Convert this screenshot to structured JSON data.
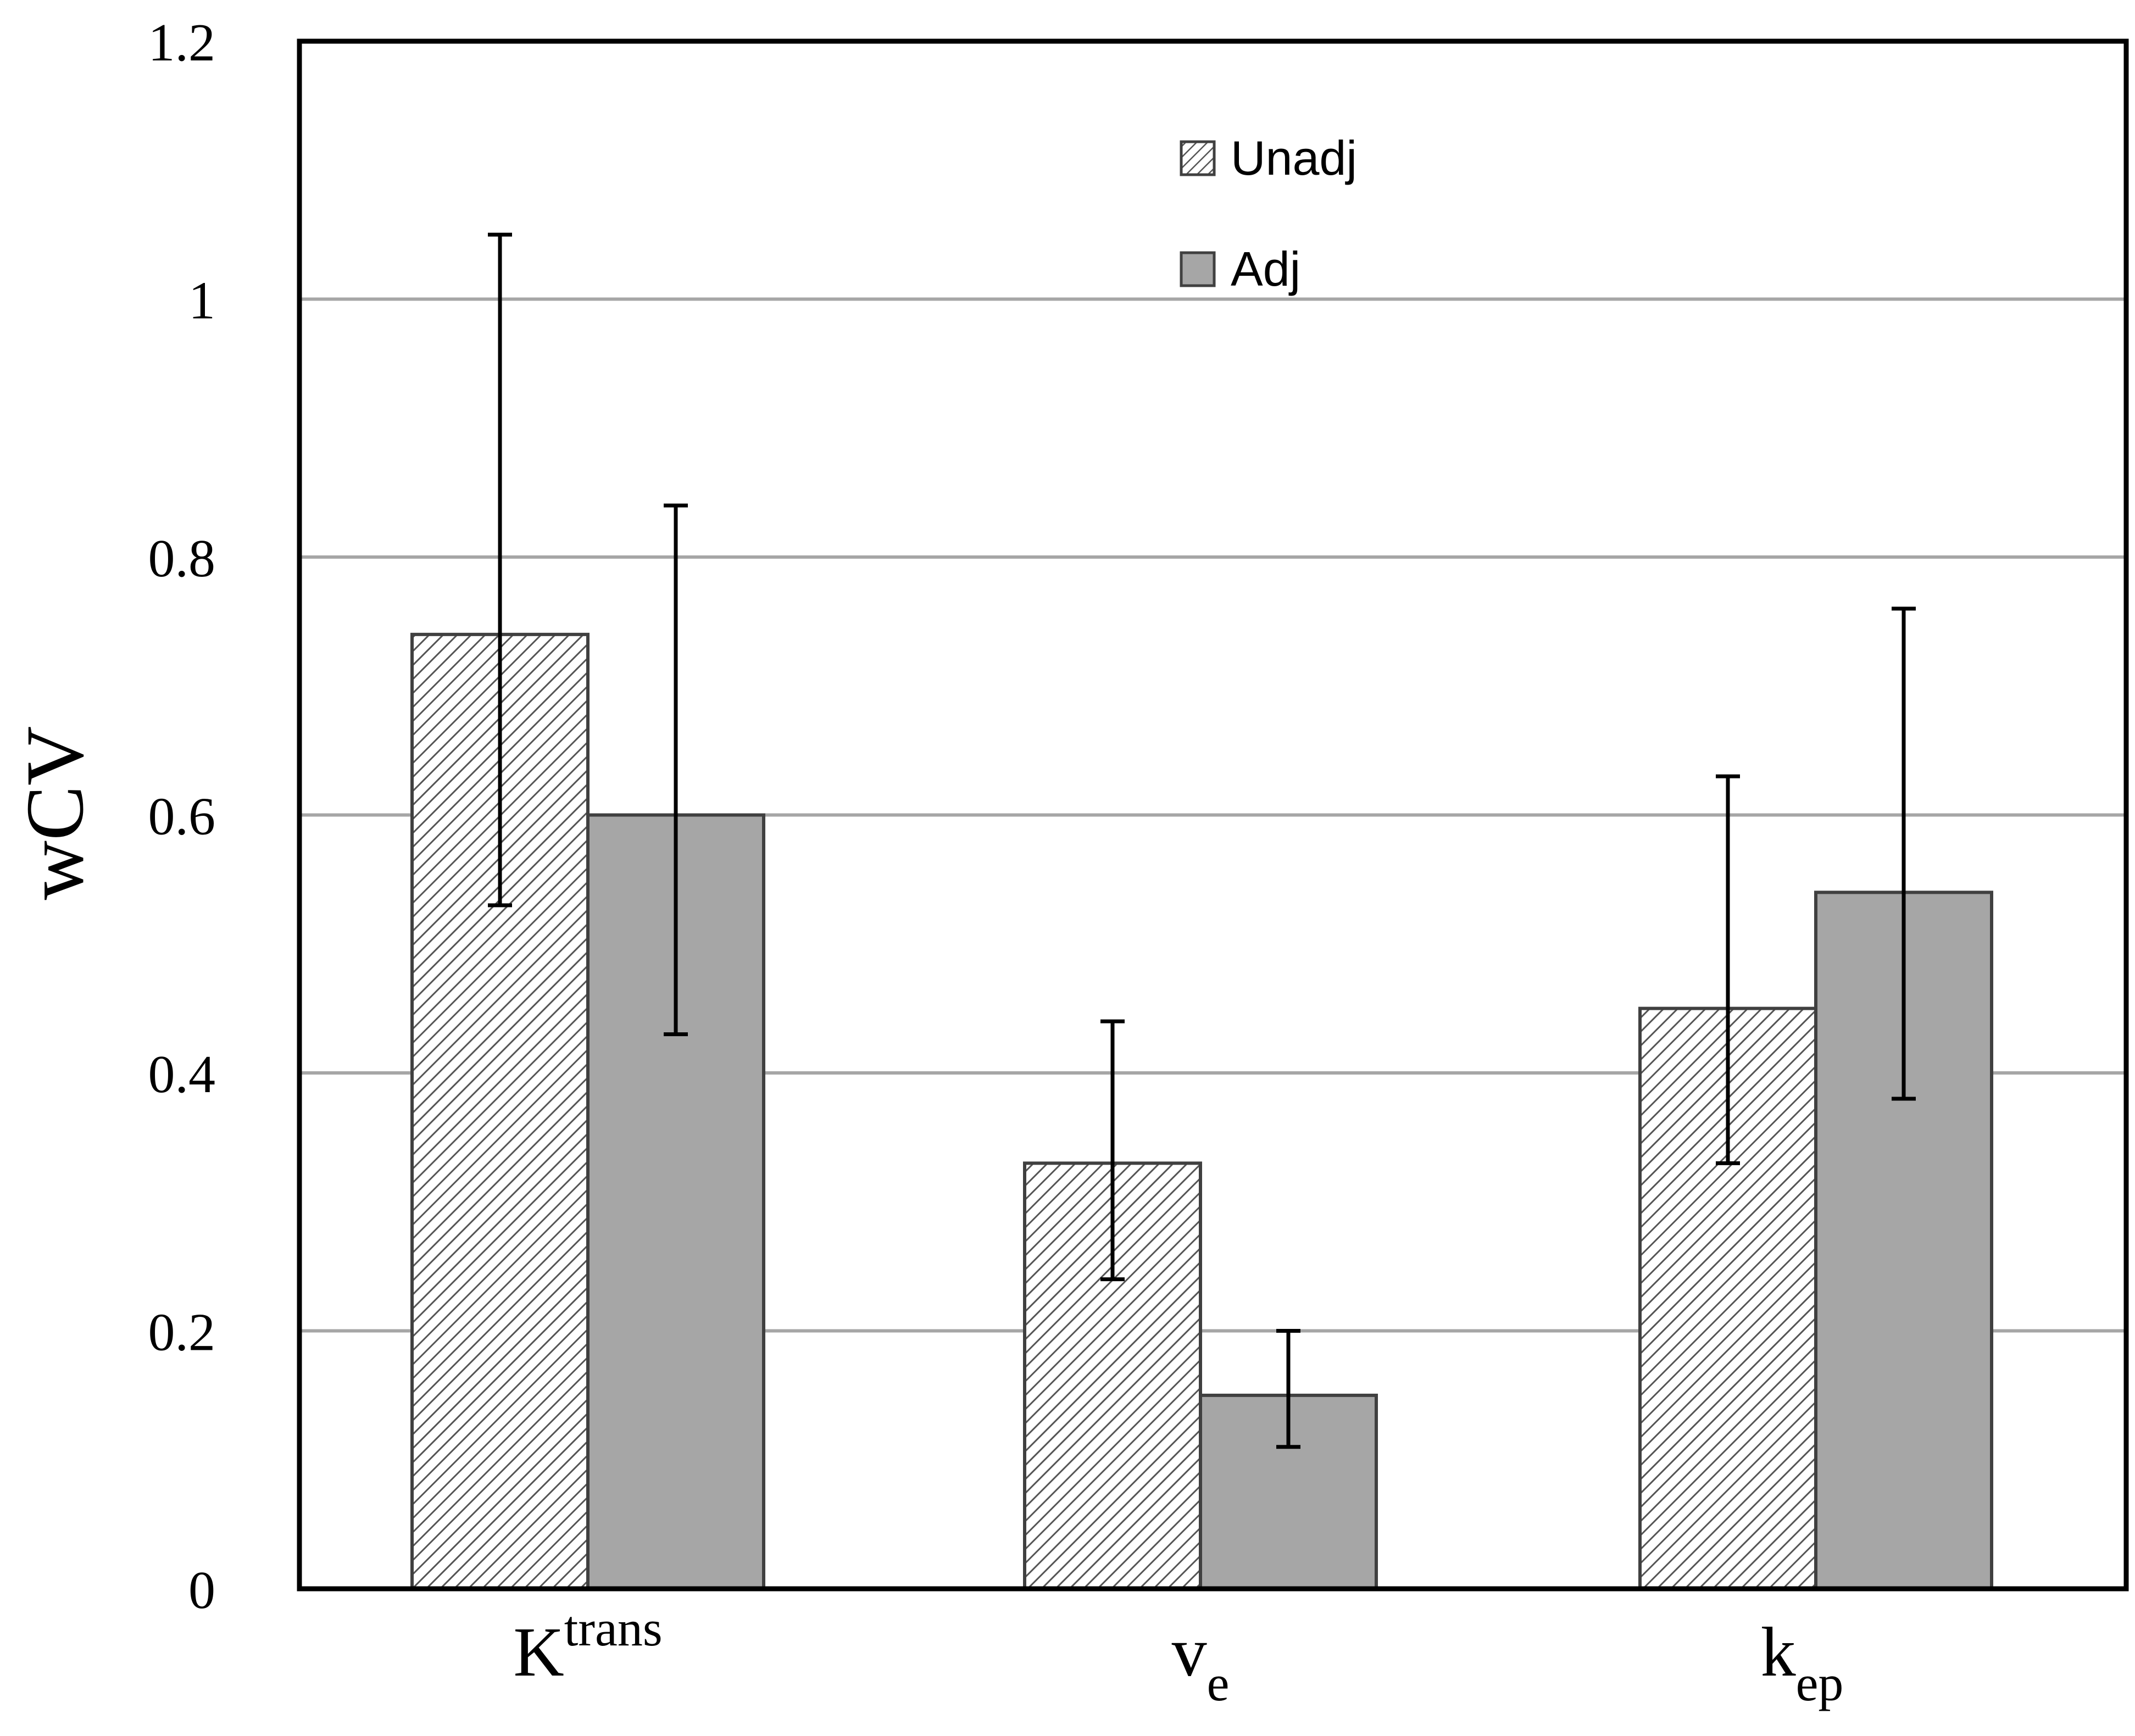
{
  "chart_data": {
    "type": "bar",
    "title": "",
    "xlabel": "",
    "ylabel": "wCV",
    "ylim": [
      0,
      1.2
    ],
    "yticks": [
      "0",
      "0.2",
      "0.4",
      "0.6",
      "0.8",
      "1",
      "1.2"
    ],
    "grid": true,
    "legend_position": "top-center",
    "categories": [
      {
        "base": "K",
        "sup": "trans",
        "sub": ""
      },
      {
        "base": "v",
        "sup": "",
        "sub": "e"
      },
      {
        "base": "k",
        "sup": "",
        "sub": "ep"
      }
    ],
    "series": [
      {
        "name": "Unadj",
        "pattern": "hatched",
        "fill_color": "#ffffff",
        "hatch_color": "#555555",
        "values": [
          0.74,
          0.33,
          0.45
        ],
        "error_low": [
          0.53,
          0.24,
          0.33
        ],
        "error_high": [
          1.05,
          0.44,
          0.63
        ]
      },
      {
        "name": "Adj",
        "pattern": "solid",
        "fill_color": "#a6a6a6",
        "values": [
          0.6,
          0.15,
          0.54
        ],
        "error_low": [
          0.43,
          0.11,
          0.38
        ],
        "error_high": [
          0.84,
          0.2,
          0.76
        ]
      }
    ],
    "colors": {
      "gridline": "#a6a6a6",
      "frame": "#000000",
      "bar_edge": "#404040",
      "error_bar": "#000000"
    }
  }
}
